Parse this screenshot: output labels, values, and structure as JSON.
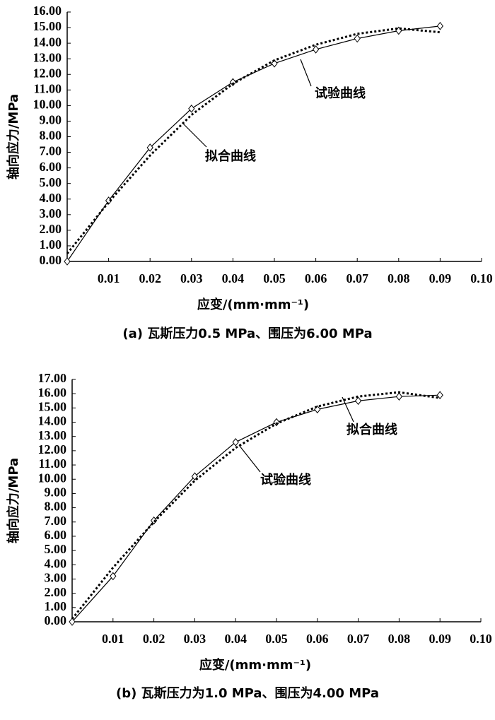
{
  "chart_data": [
    {
      "type": "line",
      "caption": "(a) 瓦斯压力0.5 MPa、围压为6.00 MPa",
      "x_label": "应变/(mm·mm⁻¹)",
      "y_label": "轴向应力/MPa",
      "x": [
        0,
        0.01,
        0.02,
        0.03,
        0.04,
        0.05,
        0.06,
        0.07,
        0.08,
        0.09
      ],
      "series": [
        {
          "name": "试验曲线",
          "color": "#000000",
          "line_style": "solid",
          "marker": "diamond",
          "values": [
            0,
            3.9,
            7.3,
            9.8,
            11.5,
            12.7,
            13.6,
            14.3,
            14.8,
            15.1
          ]
        },
        {
          "name": "拟合曲线",
          "color": "#000000",
          "line_style": "dotted",
          "marker": "none",
          "values": [
            0.5,
            3.8,
            6.8,
            9.4,
            11.4,
            12.9,
            13.9,
            14.6,
            14.95,
            14.7
          ]
        }
      ],
      "xlim": [
        0,
        0.1
      ],
      "xticks": [
        0.01,
        0.02,
        0.03,
        0.04,
        0.05,
        0.06,
        0.07,
        0.08,
        0.09,
        {
          "value": 0.1,
          "label": "0.10"
        }
      ],
      "ylim": [
        0,
        16
      ],
      "yticks": [
        {
          "value": 0,
          "label": "0.00"
        },
        {
          "value": 1,
          "label": "1.00"
        },
        {
          "value": 2,
          "label": "2.00"
        },
        {
          "value": 3,
          "label": "3.00"
        },
        {
          "value": 4,
          "label": "4.00"
        },
        {
          "value": 5,
          "label": "5.00"
        },
        {
          "value": 6,
          "label": "6.00"
        },
        {
          "value": 7,
          "label": "7.00"
        },
        {
          "value": 8,
          "label": "8.00"
        },
        {
          "value": 9,
          "label": "9.00"
        },
        {
          "value": 10,
          "label": "10.00"
        },
        {
          "value": 11,
          "label": "11.00"
        },
        {
          "value": 12,
          "label": "12.00"
        },
        {
          "value": 13,
          "label": "13.00"
        },
        {
          "value": 14,
          "label": "14.00"
        },
        {
          "value": 15,
          "label": "15.00"
        },
        {
          "value": 16,
          "label": "16.00"
        }
      ],
      "grid": false
    },
    {
      "type": "line",
      "caption": "(b) 瓦斯压力为1.0 MPa、围压为4.00 MPa",
      "x_label": "应变/(mm·mm⁻¹)",
      "y_label": "轴向应力/MPa",
      "x": [
        0,
        0.01,
        0.02,
        0.03,
        0.04,
        0.05,
        0.06,
        0.07,
        0.08,
        0.09
      ],
      "series": [
        {
          "name": "试验曲线",
          "color": "#000000",
          "line_style": "solid",
          "marker": "diamond",
          "values": [
            0,
            3.2,
            7.1,
            10.2,
            12.6,
            14.0,
            14.9,
            15.5,
            15.8,
            15.9
          ]
        },
        {
          "name": "拟合曲线",
          "color": "#000000",
          "line_style": "dotted",
          "marker": "none",
          "values": [
            0.2,
            3.8,
            7.0,
            9.9,
            12.2,
            13.9,
            15.1,
            15.8,
            16.1,
            15.7
          ]
        }
      ],
      "xlim": [
        0,
        0.1
      ],
      "xticks": [
        0.01,
        0.02,
        0.03,
        0.04,
        0.05,
        0.06,
        0.07,
        0.08,
        0.09,
        {
          "value": 0.1,
          "label": "0.10"
        }
      ],
      "ylim": [
        0,
        17
      ],
      "yticks": [
        {
          "value": 0,
          "label": "0.00"
        },
        {
          "value": 1,
          "label": "1.00"
        },
        {
          "value": 2,
          "label": "2.00"
        },
        {
          "value": 3,
          "label": "3.00"
        },
        {
          "value": 4,
          "label": "4.00"
        },
        {
          "value": 5,
          "label": "5.00"
        },
        {
          "value": 6,
          "label": "6.00"
        },
        {
          "value": 7,
          "label": "7.00"
        },
        {
          "value": 8,
          "label": "8.00"
        },
        {
          "value": 9,
          "label": "9.00"
        },
        {
          "value": 10,
          "label": "10.00"
        },
        {
          "value": 11,
          "label": "11.00"
        },
        {
          "value": 12,
          "label": "12.00"
        },
        {
          "value": 13,
          "label": "13.00"
        },
        {
          "value": 14,
          "label": "14.00"
        },
        {
          "value": 15,
          "label": "15.00"
        },
        {
          "value": 16,
          "label": "16.00"
        },
        {
          "value": 17,
          "label": "17.00"
        }
      ],
      "grid": false
    }
  ]
}
